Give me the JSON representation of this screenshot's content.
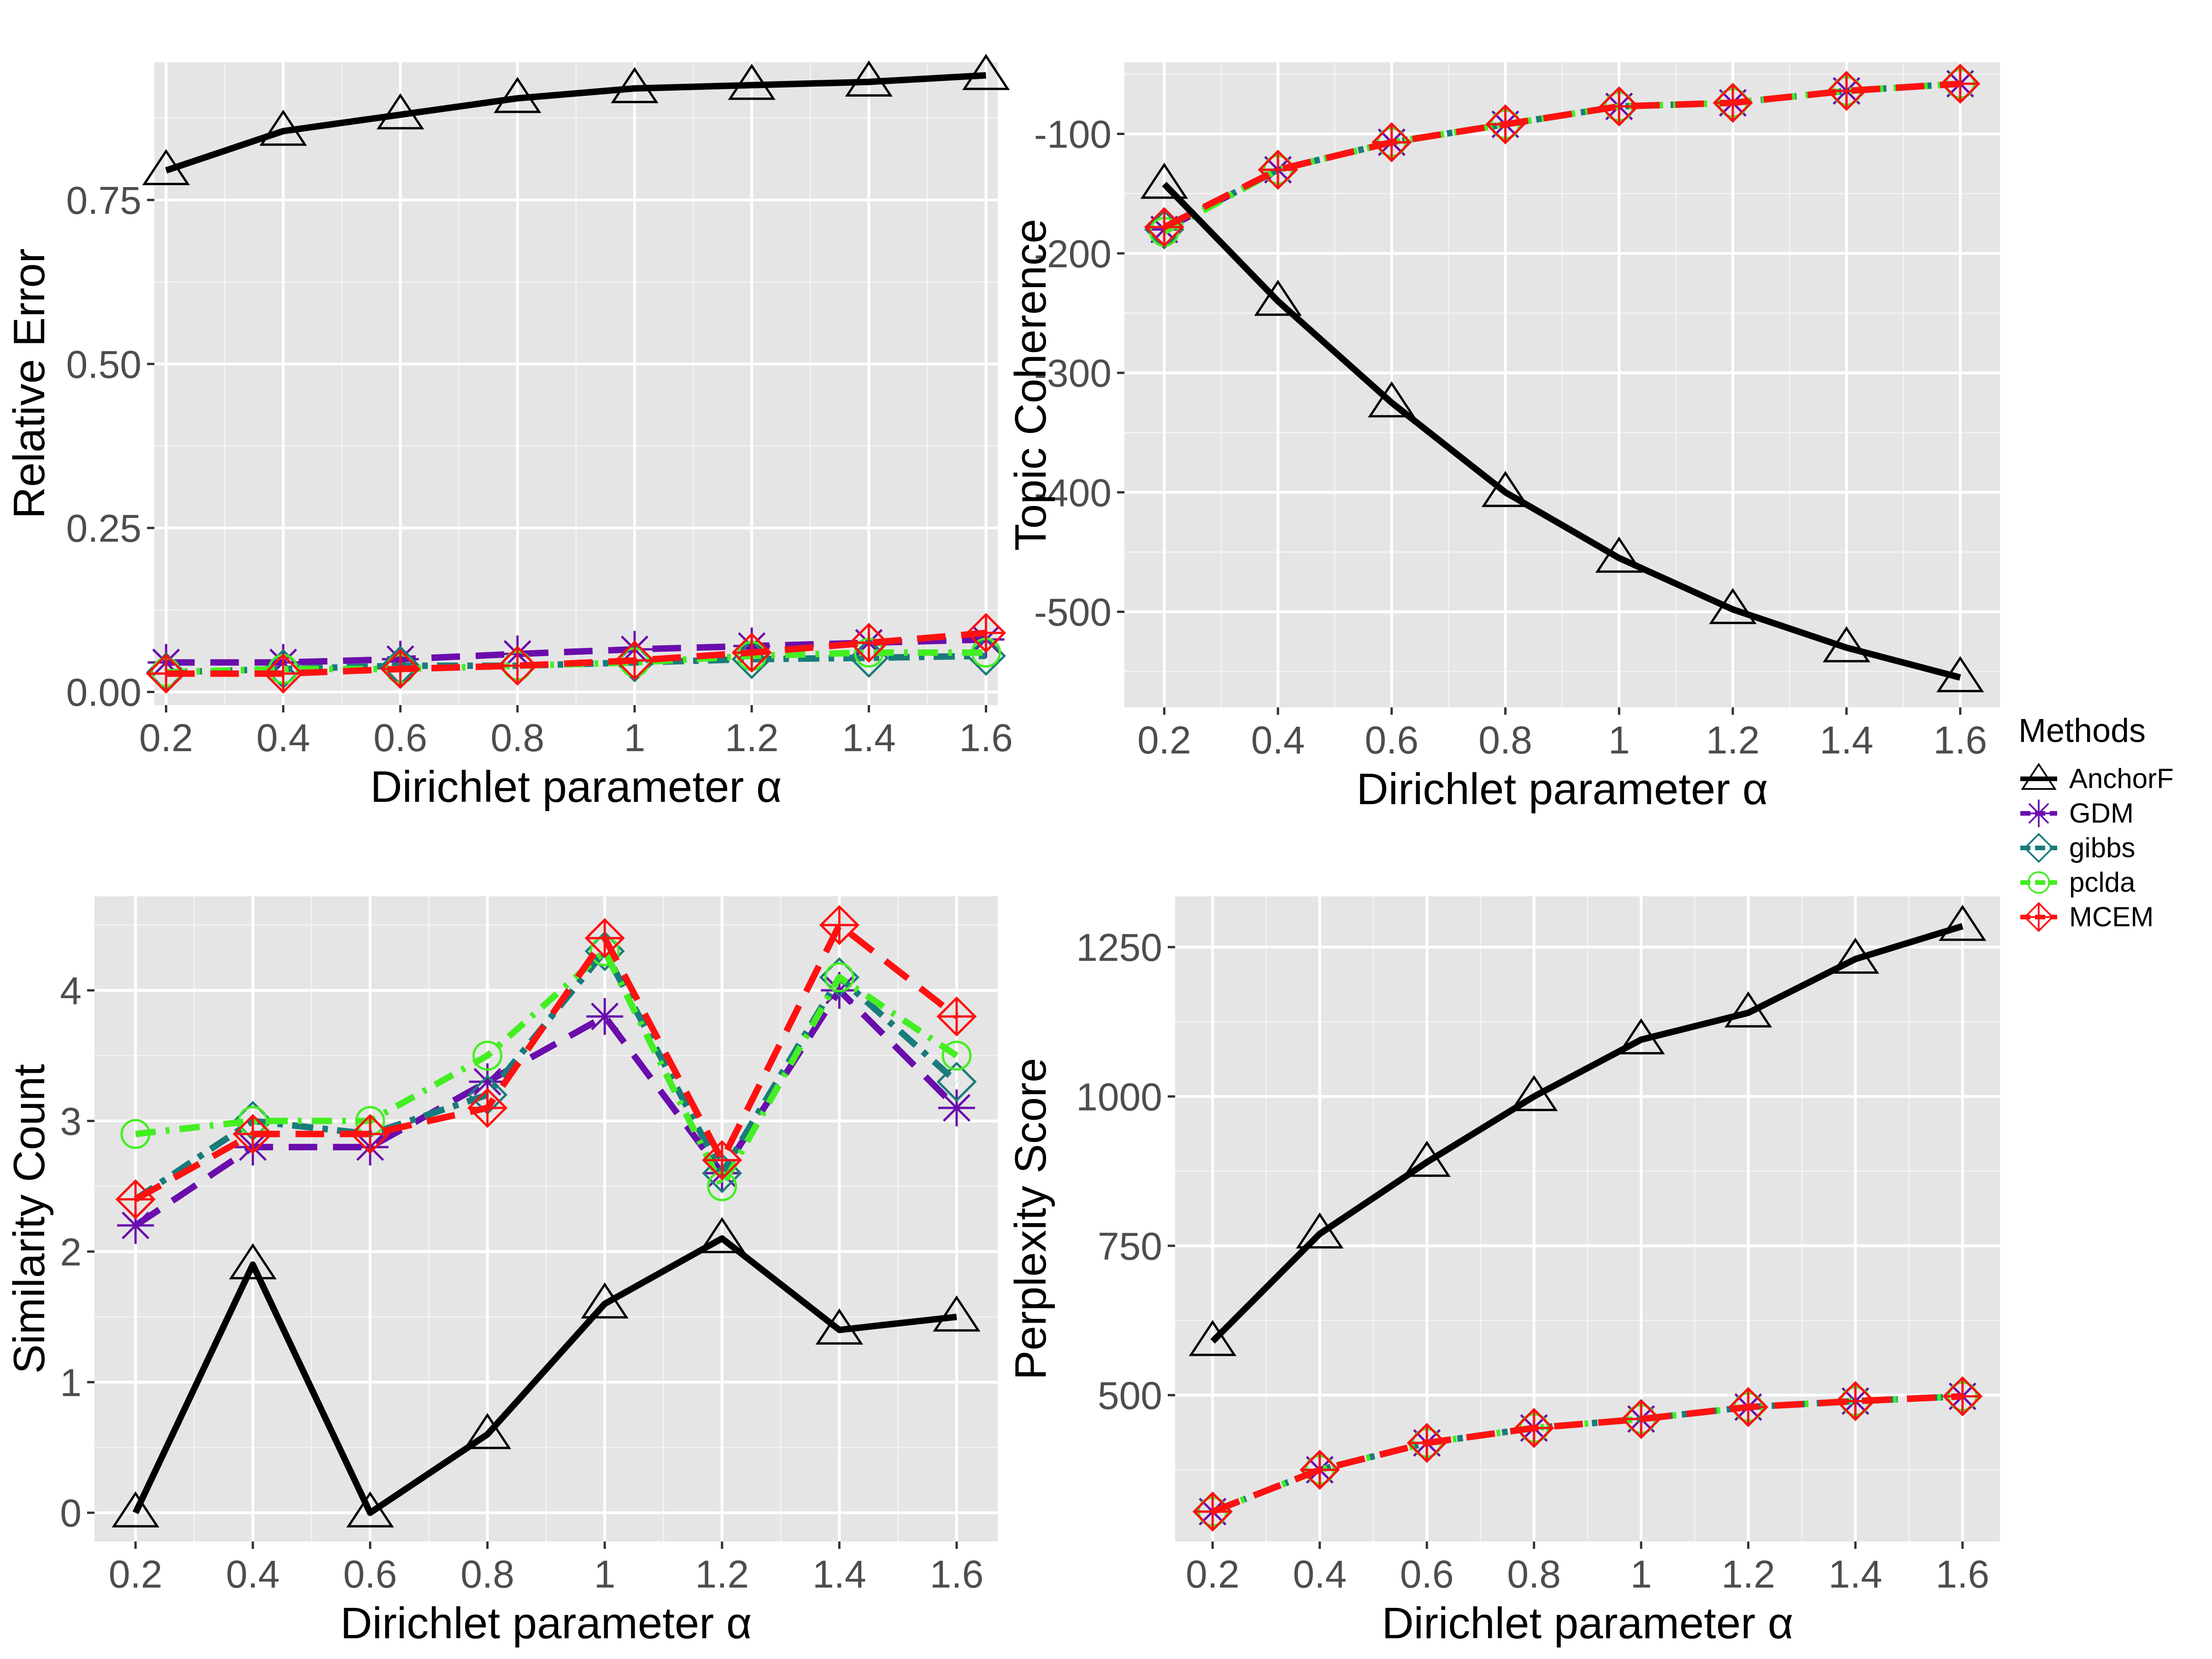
{
  "legend": {
    "title": "Methods",
    "items": [
      {
        "name": "AnchorF",
        "color": "#000000",
        "marker": "triangle-icon"
      },
      {
        "name": "GDM",
        "color": "#6a0dad",
        "marker": "asterisk-icon"
      },
      {
        "name": "gibbs",
        "color": "#1a7b7b",
        "marker": "diamond-icon"
      },
      {
        "name": "pclda",
        "color": "#44ee22",
        "marker": "circle-icon"
      },
      {
        "name": "MCEM",
        "color": "#ff1111",
        "marker": "diamond-plus-icon"
      }
    ]
  },
  "chart_data": [
    {
      "type": "line",
      "title": "",
      "xlabel": "Dirichlet parameter α",
      "ylabel": "Relative Error",
      "categories": [
        "0.2",
        "0.4",
        "0.6",
        "0.8",
        "1",
        "1.2",
        "1.4",
        "1.6"
      ],
      "x": [
        0.2,
        0.4,
        0.6,
        0.8,
        1.0,
        1.2,
        1.4,
        1.6
      ],
      "xlim": [
        0.18,
        1.62
      ],
      "ylim": [
        -0.02,
        0.96
      ],
      "yticks": [
        0.0,
        0.25,
        0.5,
        0.75
      ],
      "ytick_labels": [
        "0.00",
        "0.25",
        "0.50",
        "0.75"
      ],
      "series": [
        {
          "name": "AnchorF",
          "values": [
            0.795,
            0.855,
            0.88,
            0.905,
            0.92,
            0.925,
            0.93,
            0.94
          ]
        },
        {
          "name": "GDM",
          "values": [
            0.045,
            0.045,
            0.05,
            0.058,
            0.065,
            0.07,
            0.075,
            0.08
          ]
        },
        {
          "name": "gibbs",
          "values": [
            0.03,
            0.035,
            0.04,
            0.04,
            0.045,
            0.05,
            0.052,
            0.055
          ]
        },
        {
          "name": "pclda",
          "values": [
            0.03,
            0.035,
            0.035,
            0.04,
            0.045,
            0.055,
            0.06,
            0.06
          ]
        },
        {
          "name": "MCEM",
          "values": [
            0.028,
            0.028,
            0.035,
            0.04,
            0.048,
            0.06,
            0.075,
            0.09
          ]
        }
      ]
    },
    {
      "type": "line",
      "title": "",
      "xlabel": "Dirichlet parameter α",
      "ylabel": "Topic Coherence",
      "categories": [
        "0.2",
        "0.4",
        "0.6",
        "0.8",
        "1",
        "1.2",
        "1.4",
        "1.6"
      ],
      "x": [
        0.2,
        0.4,
        0.6,
        0.8,
        1.0,
        1.2,
        1.4,
        1.6
      ],
      "xlim": [
        0.13,
        1.67
      ],
      "ylim": [
        -580,
        -40
      ],
      "yticks": [
        -500,
        -400,
        -300,
        -200,
        -100
      ],
      "ytick_labels": [
        "-500",
        "-400",
        "-300",
        "-200",
        "-100"
      ],
      "series": [
        {
          "name": "AnchorF",
          "values": [
            -142,
            -240,
            -325,
            -400,
            -455,
            -498,
            -530,
            -555
          ]
        },
        {
          "name": "GDM",
          "values": [
            -180,
            -130,
            -107,
            -92,
            -77,
            -74,
            -64,
            -58
          ]
        },
        {
          "name": "gibbs",
          "values": [
            -180,
            -130,
            -107,
            -92,
            -77,
            -74,
            -64,
            -58
          ]
        },
        {
          "name": "pclda",
          "values": [
            -182,
            -130,
            -107,
            -92,
            -77,
            -74,
            -64,
            -58
          ]
        },
        {
          "name": "MCEM",
          "values": [
            -178,
            -130,
            -107,
            -92,
            -77,
            -74,
            -64,
            -58
          ]
        }
      ]
    },
    {
      "type": "line",
      "title": "",
      "xlabel": "Dirichlet parameter α",
      "ylabel": "Similarity Count",
      "categories": [
        "0.2",
        "0.4",
        "0.6",
        "0.8",
        "1",
        "1.2",
        "1.4",
        "1.6"
      ],
      "x": [
        0.2,
        0.4,
        0.6,
        0.8,
        1.0,
        1.2,
        1.4,
        1.6
      ],
      "xlim": [
        0.13,
        1.67
      ],
      "ylim": [
        -0.22,
        4.72
      ],
      "yticks": [
        0,
        1,
        2,
        3,
        4
      ],
      "ytick_labels": [
        "0",
        "1",
        "2",
        "3",
        "4"
      ],
      "series": [
        {
          "name": "AnchorF",
          "values": [
            0.0,
            1.9,
            0.0,
            0.6,
            1.6,
            2.1,
            1.4,
            1.5
          ]
        },
        {
          "name": "GDM",
          "values": [
            2.2,
            2.8,
            2.8,
            3.3,
            3.8,
            2.6,
            4.0,
            3.1
          ]
        },
        {
          "name": "gibbs",
          "values": [
            2.4,
            3.0,
            2.9,
            3.2,
            4.3,
            2.6,
            4.1,
            3.3
          ]
        },
        {
          "name": "pclda",
          "values": [
            2.9,
            3.0,
            3.0,
            3.5,
            4.3,
            2.5,
            4.1,
            3.5
          ]
        },
        {
          "name": "MCEM",
          "values": [
            2.4,
            2.9,
            2.9,
            3.1,
            4.4,
            2.7,
            4.5,
            3.8
          ]
        }
      ]
    },
    {
      "type": "line",
      "title": "",
      "xlabel": "Dirichlet parameter α",
      "ylabel": "Perplexity Score",
      "categories": [
        "0.2",
        "0.4",
        "0.6",
        "0.8",
        "1",
        "1.2",
        "1.4",
        "1.6"
      ],
      "x": [
        0.2,
        0.4,
        0.6,
        0.8,
        1.0,
        1.2,
        1.4,
        1.6
      ],
      "xlim": [
        0.13,
        1.67
      ],
      "ylim": [
        255,
        1335
      ],
      "yticks": [
        500,
        750,
        1000,
        1250
      ],
      "ytick_labels": [
        "500",
        "750",
        "1000",
        "1250"
      ],
      "series": [
        {
          "name": "AnchorF",
          "values": [
            590,
            770,
            890,
            1000,
            1095,
            1140,
            1230,
            1285
          ]
        },
        {
          "name": "GDM",
          "values": [
            305,
            375,
            420,
            445,
            460,
            480,
            490,
            498
          ]
        },
        {
          "name": "gibbs",
          "values": [
            305,
            375,
            420,
            445,
            460,
            480,
            490,
            498
          ]
        },
        {
          "name": "pclda",
          "values": [
            305,
            375,
            420,
            445,
            460,
            480,
            490,
            498
          ]
        },
        {
          "name": "MCEM",
          "values": [
            305,
            375,
            420,
            445,
            460,
            480,
            490,
            498
          ]
        }
      ]
    }
  ]
}
